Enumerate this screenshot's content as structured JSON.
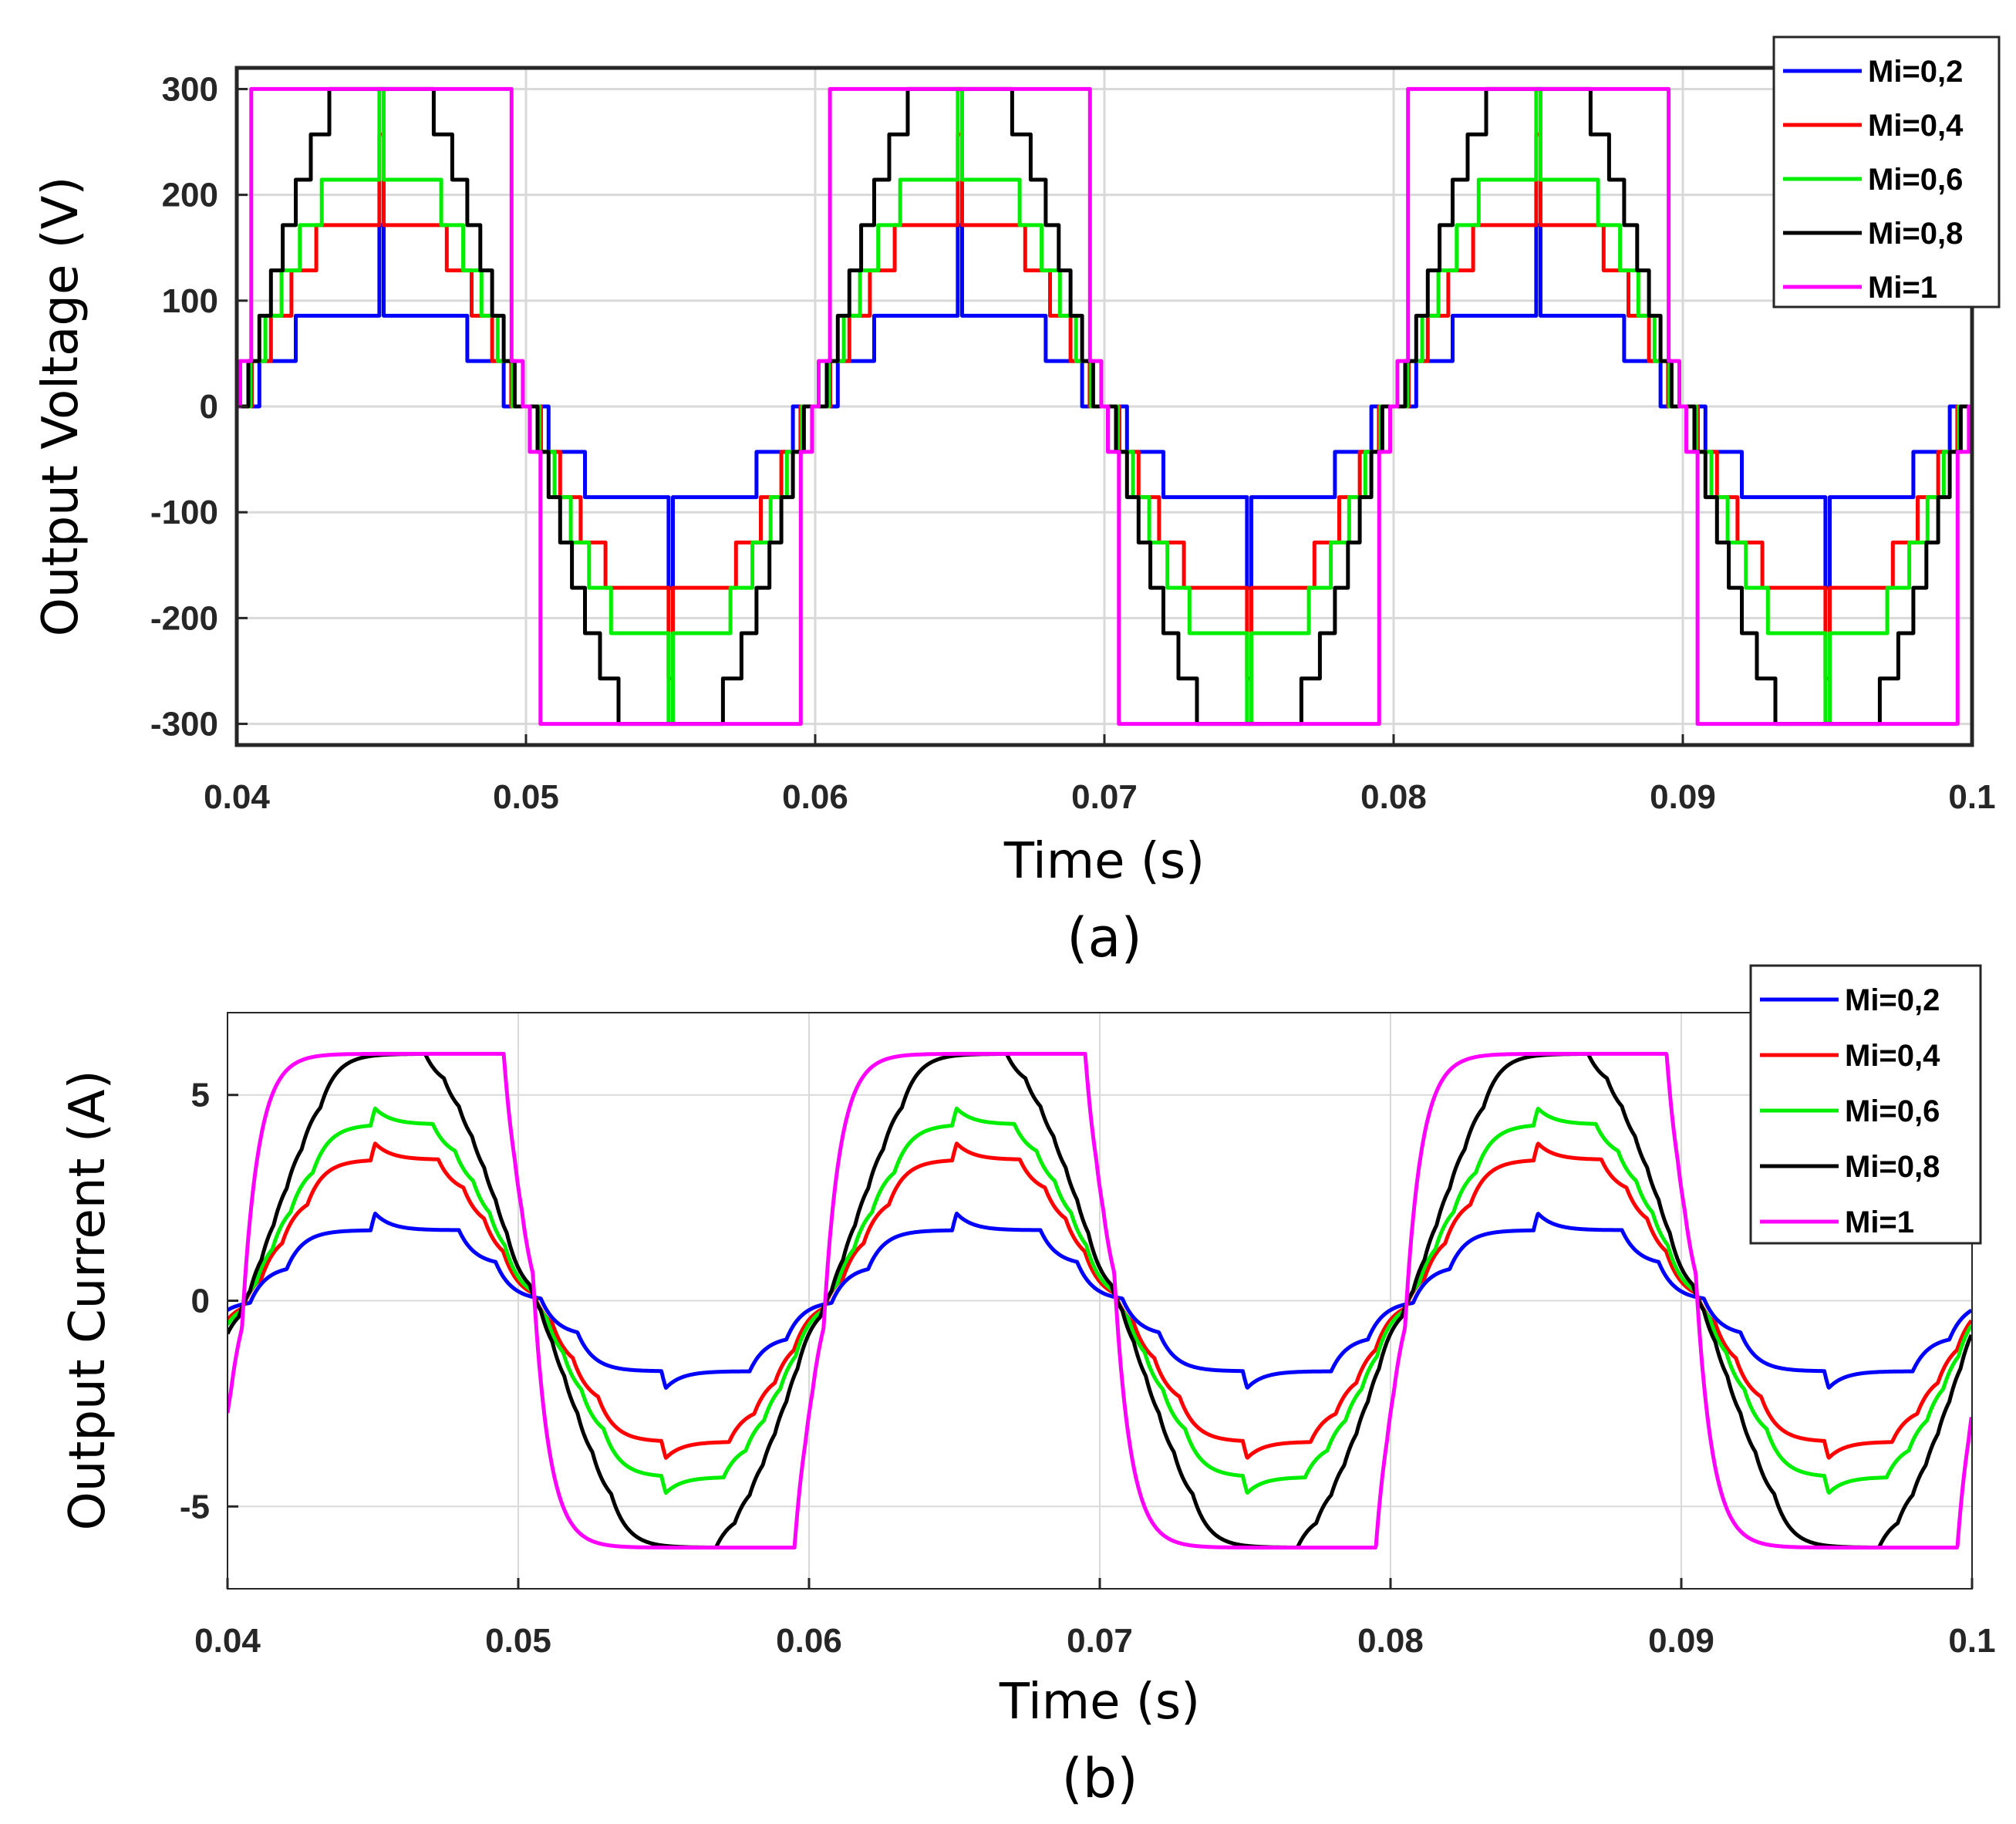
{
  "figure": {
    "caption_a": "(a)",
    "caption_b": "(b)"
  },
  "chart_data": [
    {
      "type": "line",
      "id": "a",
      "title": "",
      "xlabel": "Time (s)",
      "ylabel": "Output Voltage (V)",
      "xlim": [
        0.04,
        0.1
      ],
      "ylim": [
        -320,
        320
      ],
      "xticks": [
        0.04,
        0.05,
        0.06,
        0.07,
        0.08,
        0.09,
        0.1
      ],
      "xtick_labels": [
        "0.04",
        "0.05",
        "0.06",
        "0.07",
        "0.08",
        "0.09",
        "0.1"
      ],
      "yticks": [
        300,
        200,
        100,
        0,
        -100,
        -200,
        -300
      ],
      "ytick_labels": [
        "300",
        "200",
        "100",
        "0",
        "-100",
        "-200",
        "-300"
      ],
      "grid": true,
      "legend_position": "top-right",
      "period_s": 0.02,
      "series": [
        {
          "name": "Mi=0,2",
          "color": "#0000ff",
          "modulation_index": 0.2,
          "waveform": "staircase",
          "step_levels_V": [
            0,
            42.9,
            85.7,
            171.4
          ],
          "peak_V": 171.4,
          "flat_top_V": 85.7
        },
        {
          "name": "Mi=0,4",
          "color": "#ff0000",
          "modulation_index": 0.4,
          "waveform": "staircase",
          "step_levels_V": [
            0,
            42.9,
            85.7,
            128.6,
            171.4,
            257.1
          ],
          "peak_V": 257.1,
          "flat_top_V": 171.4
        },
        {
          "name": "Mi=0,6",
          "color": "#00ee00",
          "modulation_index": 0.6,
          "waveform": "staircase",
          "step_levels_V": [
            0,
            42.9,
            85.7,
            128.6,
            171.4,
            214.3,
            257.1,
            300
          ],
          "peak_V": 300,
          "flat_top_V": 214.3
        },
        {
          "name": "Mi=0,8",
          "color": "#000000",
          "modulation_index": 0.8,
          "waveform": "staircase",
          "step_levels_V": [
            0,
            42.9,
            85.7,
            128.6,
            171.4,
            214.3,
            257.1,
            300
          ],
          "peak_V": 300,
          "flat_top_V": 300
        },
        {
          "name": "Mi=1",
          "color": "#ff00ff",
          "modulation_index": 1.0,
          "waveform": "square",
          "step_levels_V": [
            0,
            42.9,
            300
          ],
          "peak_V": 300,
          "flat_top_V": 300
        }
      ]
    },
    {
      "type": "line",
      "id": "b",
      "title": "",
      "xlabel": "Time (s)",
      "ylabel": "Output Current (A)",
      "xlim": [
        0.04,
        0.1
      ],
      "ylim": [
        -7,
        7
      ],
      "xticks": [
        0.04,
        0.05,
        0.06,
        0.07,
        0.08,
        0.09,
        0.1
      ],
      "xtick_labels": [
        "0.04",
        "0.05",
        "0.06",
        "0.07",
        "0.08",
        "0.09",
        "0.1"
      ],
      "yticks": [
        5,
        0,
        -5
      ],
      "ytick_labels": [
        "5",
        "0",
        "-5"
      ],
      "grid": true,
      "legend_position": "top-right",
      "period_s": 0.02,
      "current_scale_A_per_V": 0.02,
      "series": [
        {
          "name": "Mi=0,2",
          "color": "#0000ff",
          "peak_A": 1.7
        },
        {
          "name": "Mi=0,4",
          "color": "#ff0000",
          "peak_A": 3.4
        },
        {
          "name": "Mi=0,6",
          "color": "#00ee00",
          "peak_A": 4.8
        },
        {
          "name": "Mi=0,8",
          "color": "#000000",
          "peak_A": 6.0
        },
        {
          "name": "Mi=1",
          "color": "#ff00ff",
          "peak_A": 6.0
        }
      ]
    }
  ]
}
